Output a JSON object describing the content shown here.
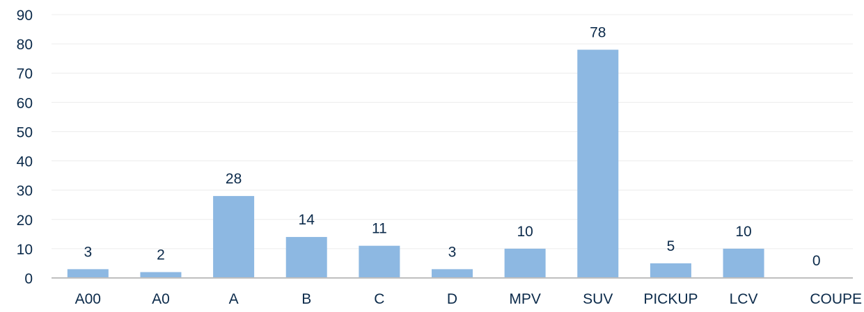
{
  "chart_data": {
    "type": "bar",
    "categories": [
      "A00",
      "A0",
      "A",
      "B",
      "C",
      "D",
      "MPV",
      "SUV",
      "PICKUP",
      "LCV",
      "COUPE"
    ],
    "values": [
      3,
      2,
      28,
      14,
      11,
      3,
      10,
      78,
      5,
      10,
      0
    ],
    "data_labels": [
      "3",
      "2",
      "28",
      "14",
      "11",
      "3",
      "10",
      "78",
      "5",
      "10",
      "0"
    ],
    "y_ticks": [
      "0",
      "10",
      "20",
      "30",
      "40",
      "50",
      "60",
      "70",
      "80",
      "90"
    ],
    "ylim": [
      0,
      90
    ],
    "grid": true,
    "legend": "none",
    "colors": {
      "bar": "#8db8e2",
      "text": "#0b2a4a",
      "grid": "#ececec",
      "axis": "#bfbfbf"
    }
  }
}
